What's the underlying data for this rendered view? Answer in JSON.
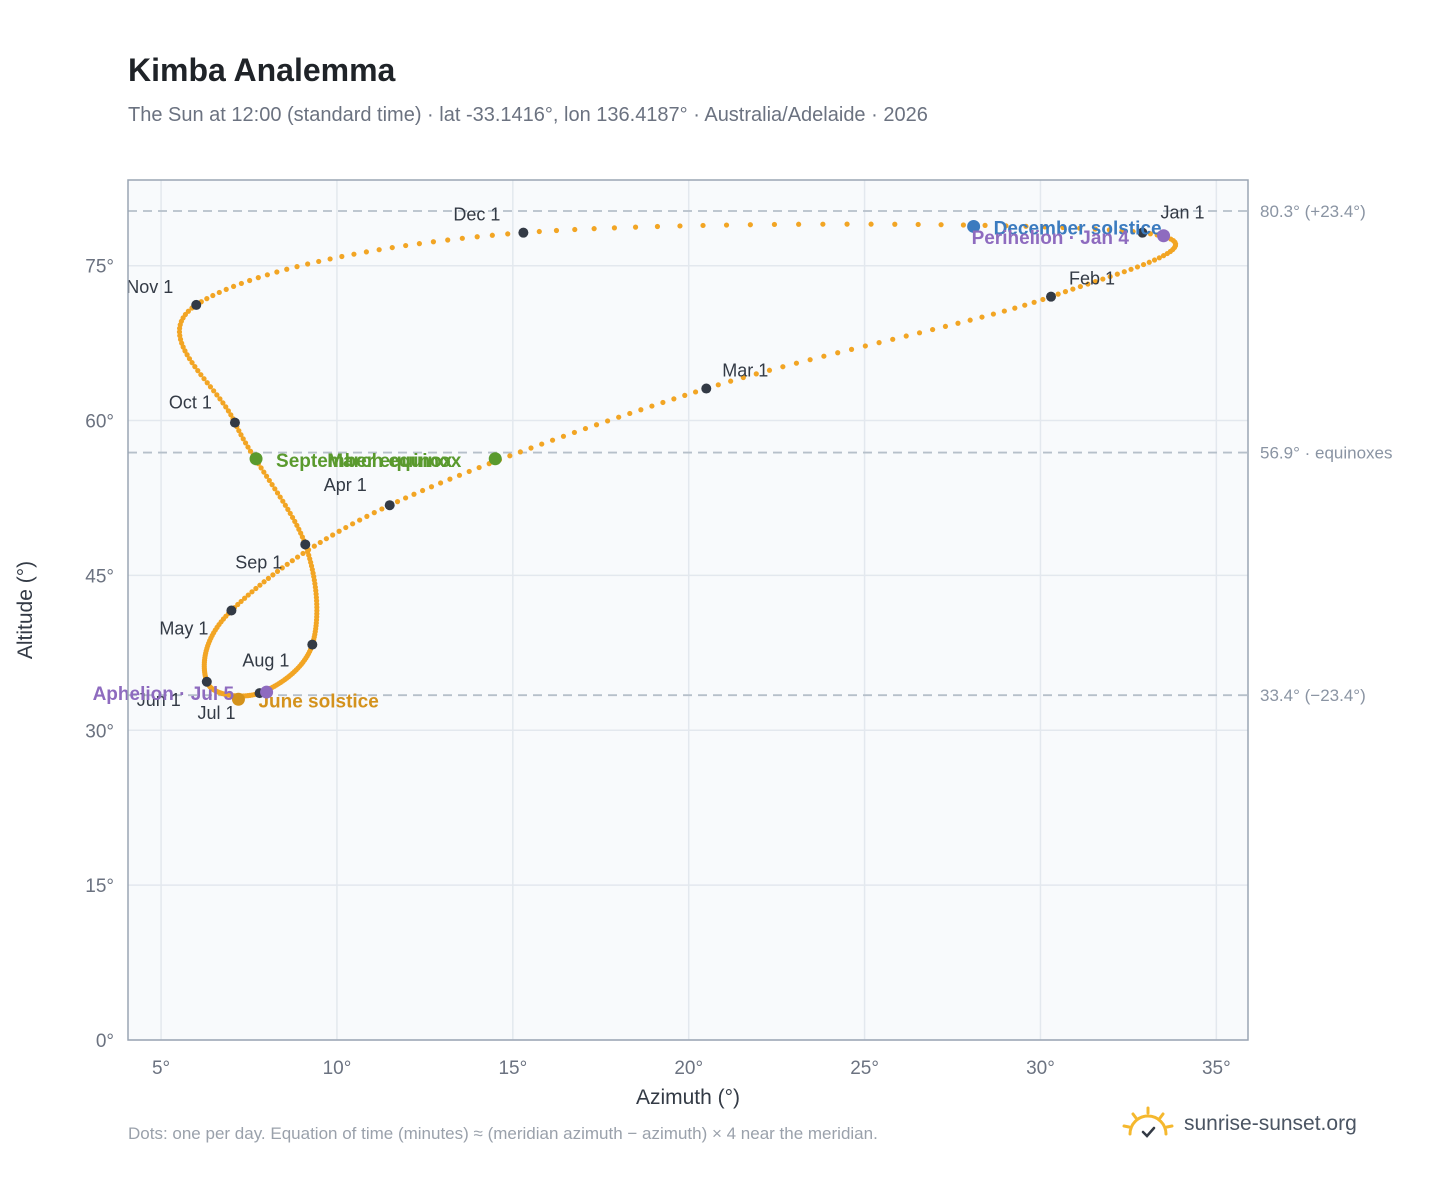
{
  "header": {
    "title": "Kimba Analemma",
    "subtitle": "The Sun at 12:00 (standard time) · lat -33.1416°, lon 136.4187° · Australia/Adelaide · 2026"
  },
  "footer": {
    "note": "Dots: one per day. Equation of time (minutes) ≈ (meridian azimuth − azimuth) × 4 near the meridian.",
    "brand": "sunrise-sunset.org",
    "brand_icon": "sun-icon"
  },
  "colors": {
    "curve": "#f2a524",
    "month_marker": "#333a45",
    "equinox": "#5a9a2e",
    "december_solstice": "#3b7bbf",
    "june_solstice": "#d4921c",
    "perihelion_aphelion": "#8e6bbf",
    "plot_bg": "#f8fafc",
    "grid": "#e3e8ee",
    "reference_line": "#b6c0ca"
  },
  "chart_data": {
    "type": "scatter",
    "xlabel": "Azimuth (°)",
    "ylabel": "Altitude (°)",
    "xlim": [
      4.06,
      35.9
    ],
    "ylim": [
      0,
      83.3
    ],
    "x_ticks": [
      5,
      10,
      15,
      20,
      25,
      30,
      35
    ],
    "x_tick_labels": [
      "5°",
      "10°",
      "15°",
      "20°",
      "25°",
      "30°",
      "35°"
    ],
    "y_ticks": [
      0,
      15,
      30,
      45,
      60,
      75
    ],
    "y_tick_labels": [
      "0°",
      "15°",
      "30°",
      "45°",
      "60°",
      "75°"
    ],
    "grid": true,
    "reference_lines": [
      {
        "y": 80.3,
        "label": "80.3° (+23.4°)"
      },
      {
        "y": 56.9,
        "label": "56.9° · equinoxes"
      },
      {
        "y": 33.4,
        "label": "33.4° (−23.4°)"
      }
    ],
    "daily_points_per_month": {
      "x_start_of_month": [
        32.9,
        30.3,
        20.5,
        11.5,
        7.0,
        6.3,
        7.8,
        9.3,
        9.1,
        7.1,
        6.0,
        15.3,
        32.9
      ],
      "y_start_of_month": [
        78.2,
        72.0,
        63.1,
        51.8,
        41.6,
        34.7,
        33.6,
        38.3,
        48.0,
        59.8,
        71.2,
        78.2,
        78.2
      ]
    },
    "month_markers": [
      {
        "label": "Jan 1",
        "x": 32.9,
        "y": 78.2
      },
      {
        "label": "Feb 1",
        "x": 30.3,
        "y": 72.0
      },
      {
        "label": "Mar 1",
        "x": 20.5,
        "y": 63.1
      },
      {
        "label": "Apr 1",
        "x": 11.5,
        "y": 51.8
      },
      {
        "label": "May 1",
        "x": 7.0,
        "y": 41.6
      },
      {
        "label": "Jun 1",
        "x": 6.3,
        "y": 34.7
      },
      {
        "label": "Jul 1",
        "x": 7.8,
        "y": 33.6
      },
      {
        "label": "Aug 1",
        "x": 9.3,
        "y": 38.3
      },
      {
        "label": "Sep 1",
        "x": 9.1,
        "y": 48.0
      },
      {
        "label": "Oct 1",
        "x": 7.1,
        "y": 59.8
      },
      {
        "label": "Nov 1",
        "x": 6.0,
        "y": 71.2
      },
      {
        "label": "Dec 1",
        "x": 15.3,
        "y": 78.2
      }
    ],
    "special_points": [
      {
        "label": "March equinox",
        "x": 14.5,
        "y": 56.3,
        "kind": "equinox"
      },
      {
        "label": "September equinox",
        "x": 7.7,
        "y": 56.3,
        "kind": "equinox"
      },
      {
        "label": "December solstice",
        "x": 28.1,
        "y": 78.8,
        "kind": "december_solstice"
      },
      {
        "label": "June solstice",
        "x": 7.2,
        "y": 33.0,
        "kind": "june_solstice"
      },
      {
        "label": "Perihelion · Jan 4",
        "x": 33.5,
        "y": 77.9,
        "kind": "perihelion_aphelion"
      },
      {
        "label": "Aphelion · Jul 5",
        "x": 8.0,
        "y": 33.7,
        "kind": "perihelion_aphelion"
      }
    ]
  }
}
